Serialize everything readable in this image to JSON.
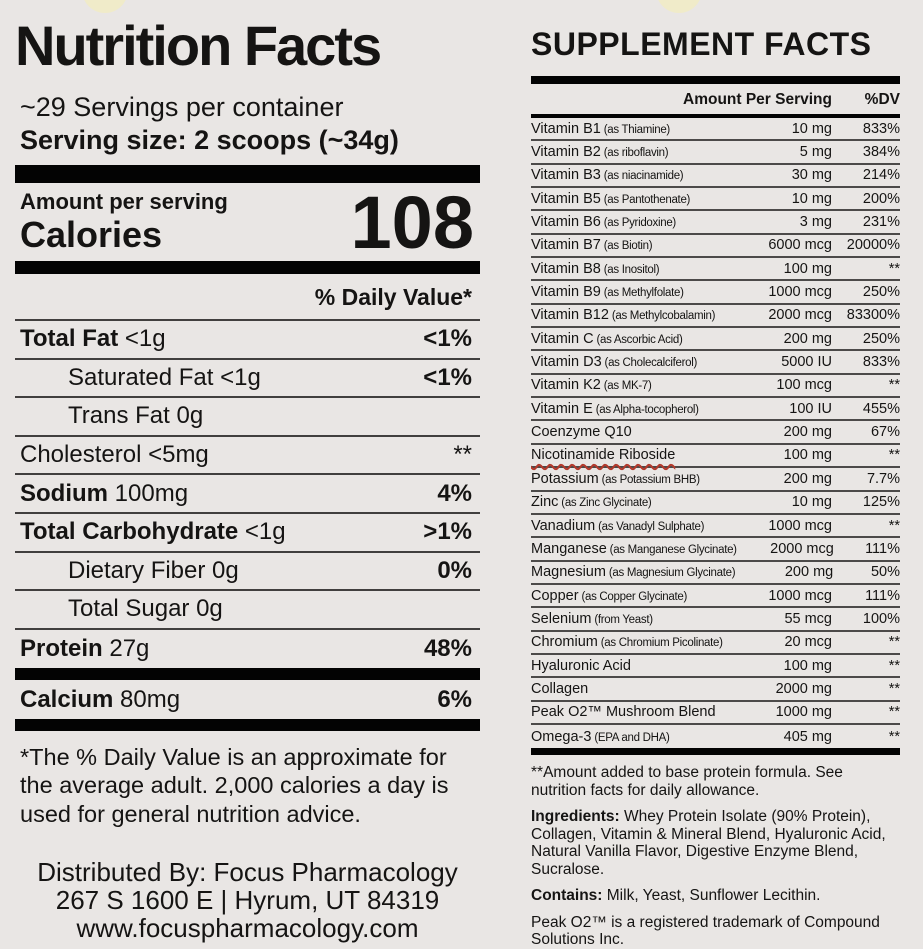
{
  "label": {
    "bg_color": "#e9e6e4",
    "blob_color": "#f0ebc9",
    "squiggle_color": "#b2392c"
  },
  "nutrition": {
    "title": "Nutrition Facts",
    "servings_per_container": "~29 Servings per container",
    "serving_size": "Serving size: 2 scoops (~34g)",
    "amount_per_serving_label": "Amount per serving",
    "calories_label": "Calories",
    "calories_value": "108",
    "daily_value_header": "% Daily Value*",
    "rows": [
      {
        "label": "Total Fat",
        "qty": "<1g",
        "dv": "<1%",
        "label_bold": true,
        "dv_bold": true,
        "indent": false
      },
      {
        "label": "Saturated Fat",
        "qty": "<1g",
        "dv": "<1%",
        "label_bold": false,
        "dv_bold": true,
        "indent": true
      },
      {
        "label": "Trans Fat",
        "qty": "0g",
        "dv": "",
        "label_bold": false,
        "dv_bold": false,
        "indent": true
      },
      {
        "label": "Cholesterol",
        "qty": "<5mg",
        "dv": "**",
        "label_bold": false,
        "dv_bold": false,
        "indent": false
      },
      {
        "label": "Sodium",
        "qty": "100mg",
        "dv": "4%",
        "label_bold": true,
        "dv_bold": true,
        "indent": false
      },
      {
        "label": "Total Carbohydrate",
        "qty": "<1g",
        "dv": ">1%",
        "label_bold": true,
        "dv_bold": true,
        "indent": false
      },
      {
        "label": "Dietary Fiber",
        "qty": "0g",
        "dv": "0%",
        "label_bold": false,
        "dv_bold": true,
        "indent": true
      },
      {
        "label": "Total Sugar",
        "qty": "0g",
        "dv": "",
        "label_bold": false,
        "dv_bold": false,
        "indent": true
      },
      {
        "label": "Protein",
        "qty": "27g",
        "dv": "48%",
        "label_bold": true,
        "dv_bold": true,
        "indent": false,
        "thick_after": true
      },
      {
        "label": "Calcium",
        "qty": "80mg",
        "dv": "6%",
        "label_bold": true,
        "dv_bold": true,
        "indent": false,
        "thick_after": true
      }
    ],
    "footnote": "*The % Daily Value is an approximate for the average adult. 2,000 calories a day is used for general nutrition advice.",
    "distributor": {
      "line1": "Distributed By: Focus Pharmacology",
      "line2": "267 S 1600 E | Hyrum, UT 84319",
      "line3": "www.focuspharmacology.com"
    }
  },
  "supplement": {
    "title": "SUPPLEMENT FACTS",
    "columns": {
      "amount": "Amount Per Serving",
      "dv": "%DV"
    },
    "rows": [
      {
        "name": "Vitamin B1",
        "form": "(as Thiamine)",
        "amount": "10 mg",
        "dv": "833%"
      },
      {
        "name": "Vitamin B2",
        "form": "(as riboflavin)",
        "amount": "5 mg",
        "dv": "384%"
      },
      {
        "name": "Vitamin B3",
        "form": "(as niacinamide)",
        "amount": "30 mg",
        "dv": "214%"
      },
      {
        "name": "Vitamin B5",
        "form": "(as Pantothenate)",
        "amount": "10 mg",
        "dv": "200%"
      },
      {
        "name": "Vitamin B6",
        "form": "(as Pyridoxine)",
        "amount": "3 mg",
        "dv": "231%"
      },
      {
        "name": "Vitamin B7",
        "form": "(as Biotin)",
        "amount": "6000 mcg",
        "dv": "20000%"
      },
      {
        "name": "Vitamin B8",
        "form": "(as Inositol)",
        "amount": "100 mg",
        "dv": "**"
      },
      {
        "name": "Vitamin B9",
        "form": "(as Methylfolate)",
        "amount": "1000 mcg",
        "dv": "250%"
      },
      {
        "name": "Vitamin B12",
        "form": "(as Methylcobalamin)",
        "amount": "2000 mcg",
        "dv": "83300%"
      },
      {
        "name": "Vitamin C",
        "form": "(as Ascorbic Acid)",
        "amount": "200 mg",
        "dv": "250%"
      },
      {
        "name": "Vitamin D3",
        "form": "(as Cholecalciferol)",
        "amount": "5000 IU",
        "dv": "833%"
      },
      {
        "name": "Vitamin K2",
        "form": "(as MK-7)",
        "amount": "100 mcg",
        "dv": "**"
      },
      {
        "name": "Vitamin E",
        "form": "(as Alpha-tocopherol)",
        "amount": "100 IU",
        "dv": "455%"
      },
      {
        "name": "Coenzyme Q10",
        "form": "",
        "amount": "200 mg",
        "dv": "67%"
      },
      {
        "name": "Nicotinamide Riboside",
        "form": "",
        "amount": "100 mg",
        "dv": "**",
        "misspelled": true
      },
      {
        "name": "Potassium",
        "form": "(as Potassium BHB)",
        "amount": "200 mg",
        "dv": "7.7%"
      },
      {
        "name": "Zinc",
        "form": "(as Zinc Glycinate)",
        "amount": "10 mg",
        "dv": "125%"
      },
      {
        "name": "Vanadium",
        "form": "(as Vanadyl Sulphate)",
        "amount": "1000 mcg",
        "dv": "**"
      },
      {
        "name": "Manganese",
        "form": "(as Manganese Glycinate)",
        "amount": "2000 mcg",
        "dv": "111%"
      },
      {
        "name": "Magnesium",
        "form": "(as Magnesium Glycinate)",
        "amount": "200 mg",
        "dv": "50%"
      },
      {
        "name": "Copper",
        "form": "(as Copper Glycinate)",
        "amount": "1000 mcg",
        "dv": "111%"
      },
      {
        "name": "Selenium",
        "form": "(from Yeast)",
        "amount": "55 mcg",
        "dv": "100%"
      },
      {
        "name": "Chromium",
        "form": "(as Chromium Picolinate)",
        "amount": "20 mcg",
        "dv": "**"
      },
      {
        "name": "Hyaluronic Acid",
        "form": "",
        "amount": "100 mg",
        "dv": "**"
      },
      {
        "name": "Collagen",
        "form": "",
        "amount": "2000 mg",
        "dv": "**"
      },
      {
        "name": "Peak O2™ Mushroom Blend",
        "form": "",
        "amount": "1000 mg",
        "dv": "**"
      },
      {
        "name": "Omega-3",
        "form": "(EPA and DHA)",
        "amount": "405 mg",
        "dv": "**"
      }
    ],
    "footnote": "**Amount added to base protein formula.  See nutrition facts for daily allowance.",
    "ingredients_label": "Ingredients:",
    "ingredients_text": " Whey Protein Isolate (90% Protein), Collagen, Vitamin & Mineral Blend, Hyaluronic Acid, Natural Vanilla Flavor, Digestive Enzyme Blend, Sucralose.",
    "contains_label": "Contains:",
    "contains_text": " Milk, Yeast, Sunflower Lecithin.",
    "trademark_note": "Peak O2™ is a registered trademark of Compound Solutions Inc."
  }
}
